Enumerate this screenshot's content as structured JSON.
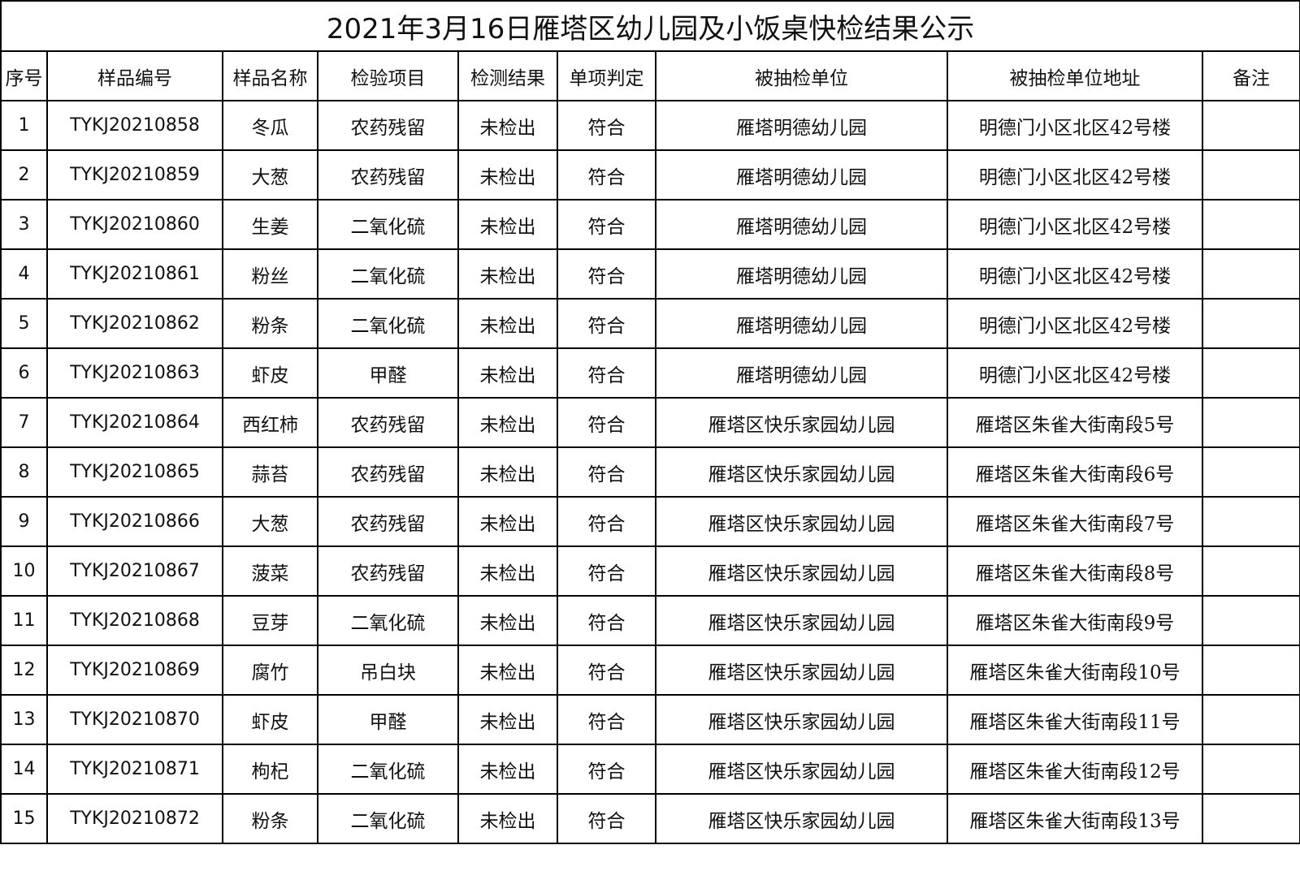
{
  "title": "2021年3月16日雁塔区幼儿园及小饭桌快检结果公示",
  "headers": [
    "序号",
    "样品编号",
    "样品名称",
    "检验项目",
    "检测结果",
    "单项判定",
    "被抽检单位",
    "被抽检单位地址",
    "备注"
  ],
  "rows": [
    [
      "1",
      "TYKJ20210858",
      "冬瓜",
      "农药残留",
      "未检出",
      "符合",
      "雁塔明德幼儿园",
      "明德门小区北区42号楼",
      ""
    ],
    [
      "2",
      "TYKJ20210859",
      "大葱",
      "农药残留",
      "未检出",
      "符合",
      "雁塔明德幼儿园",
      "明德门小区北区42号楼",
      ""
    ],
    [
      "3",
      "TYKJ20210860",
      "生姜",
      "二氧化硫",
      "未检出",
      "符合",
      "雁塔明德幼儿园",
      "明德门小区北区42号楼",
      ""
    ],
    [
      "4",
      "TYKJ20210861",
      "粉丝",
      "二氧化硫",
      "未检出",
      "符合",
      "雁塔明德幼儿园",
      "明德门小区北区42号楼",
      ""
    ],
    [
      "5",
      "TYKJ20210862",
      "粉条",
      "二氧化硫",
      "未检出",
      "符合",
      "雁塔明德幼儿园",
      "明德门小区北区42号楼",
      ""
    ],
    [
      "6",
      "TYKJ20210863",
      "虾皮",
      "甲醛",
      "未检出",
      "符合",
      "雁塔明德幼儿园",
      "明德门小区北区42号楼",
      ""
    ],
    [
      "7",
      "TYKJ20210864",
      "西红柿",
      "农药残留",
      "未检出",
      "符合",
      "雁塔区快乐家园幼儿园",
      "雁塔区朱雀大街南段5号",
      ""
    ],
    [
      "8",
      "TYKJ20210865",
      "蒜苔",
      "农药残留",
      "未检出",
      "符合",
      "雁塔区快乐家园幼儿园",
      "雁塔区朱雀大街南段6号",
      ""
    ],
    [
      "9",
      "TYKJ20210866",
      "大葱",
      "农药残留",
      "未检出",
      "符合",
      "雁塔区快乐家园幼儿园",
      "雁塔区朱雀大街南段7号",
      ""
    ],
    [
      "10",
      "TYKJ20210867",
      "菠菜",
      "农药残留",
      "未检出",
      "符合",
      "雁塔区快乐家园幼儿园",
      "雁塔区朱雀大街南段8号",
      ""
    ],
    [
      "11",
      "TYKJ20210868",
      "豆芽",
      "二氧化硫",
      "未检出",
      "符合",
      "雁塔区快乐家园幼儿园",
      "雁塔区朱雀大街南段9号",
      ""
    ],
    [
      "12",
      "TYKJ20210869",
      "腐竹",
      "吊白块",
      "未检出",
      "符合",
      "雁塔区快乐家园幼儿园",
      "雁塔区朱雀大街南段10号",
      ""
    ],
    [
      "13",
      "TYKJ20210870",
      "虾皮",
      "甲醛",
      "未检出",
      "符合",
      "雁塔区快乐家园幼儿园",
      "雁塔区朱雀大街南段11号",
      ""
    ],
    [
      "14",
      "TYKJ20210871",
      "枸杞",
      "二氧化硫",
      "未检出",
      "符合",
      "雁塔区快乐家园幼儿园",
      "雁塔区朱雀大街南段12号",
      ""
    ],
    [
      "15",
      "TYKJ20210872",
      "粉条",
      "二氧化硫",
      "未检出",
      "符合",
      "雁塔区快乐家园幼儿园",
      "雁塔区朱雀大街南段13号",
      ""
    ]
  ]
}
